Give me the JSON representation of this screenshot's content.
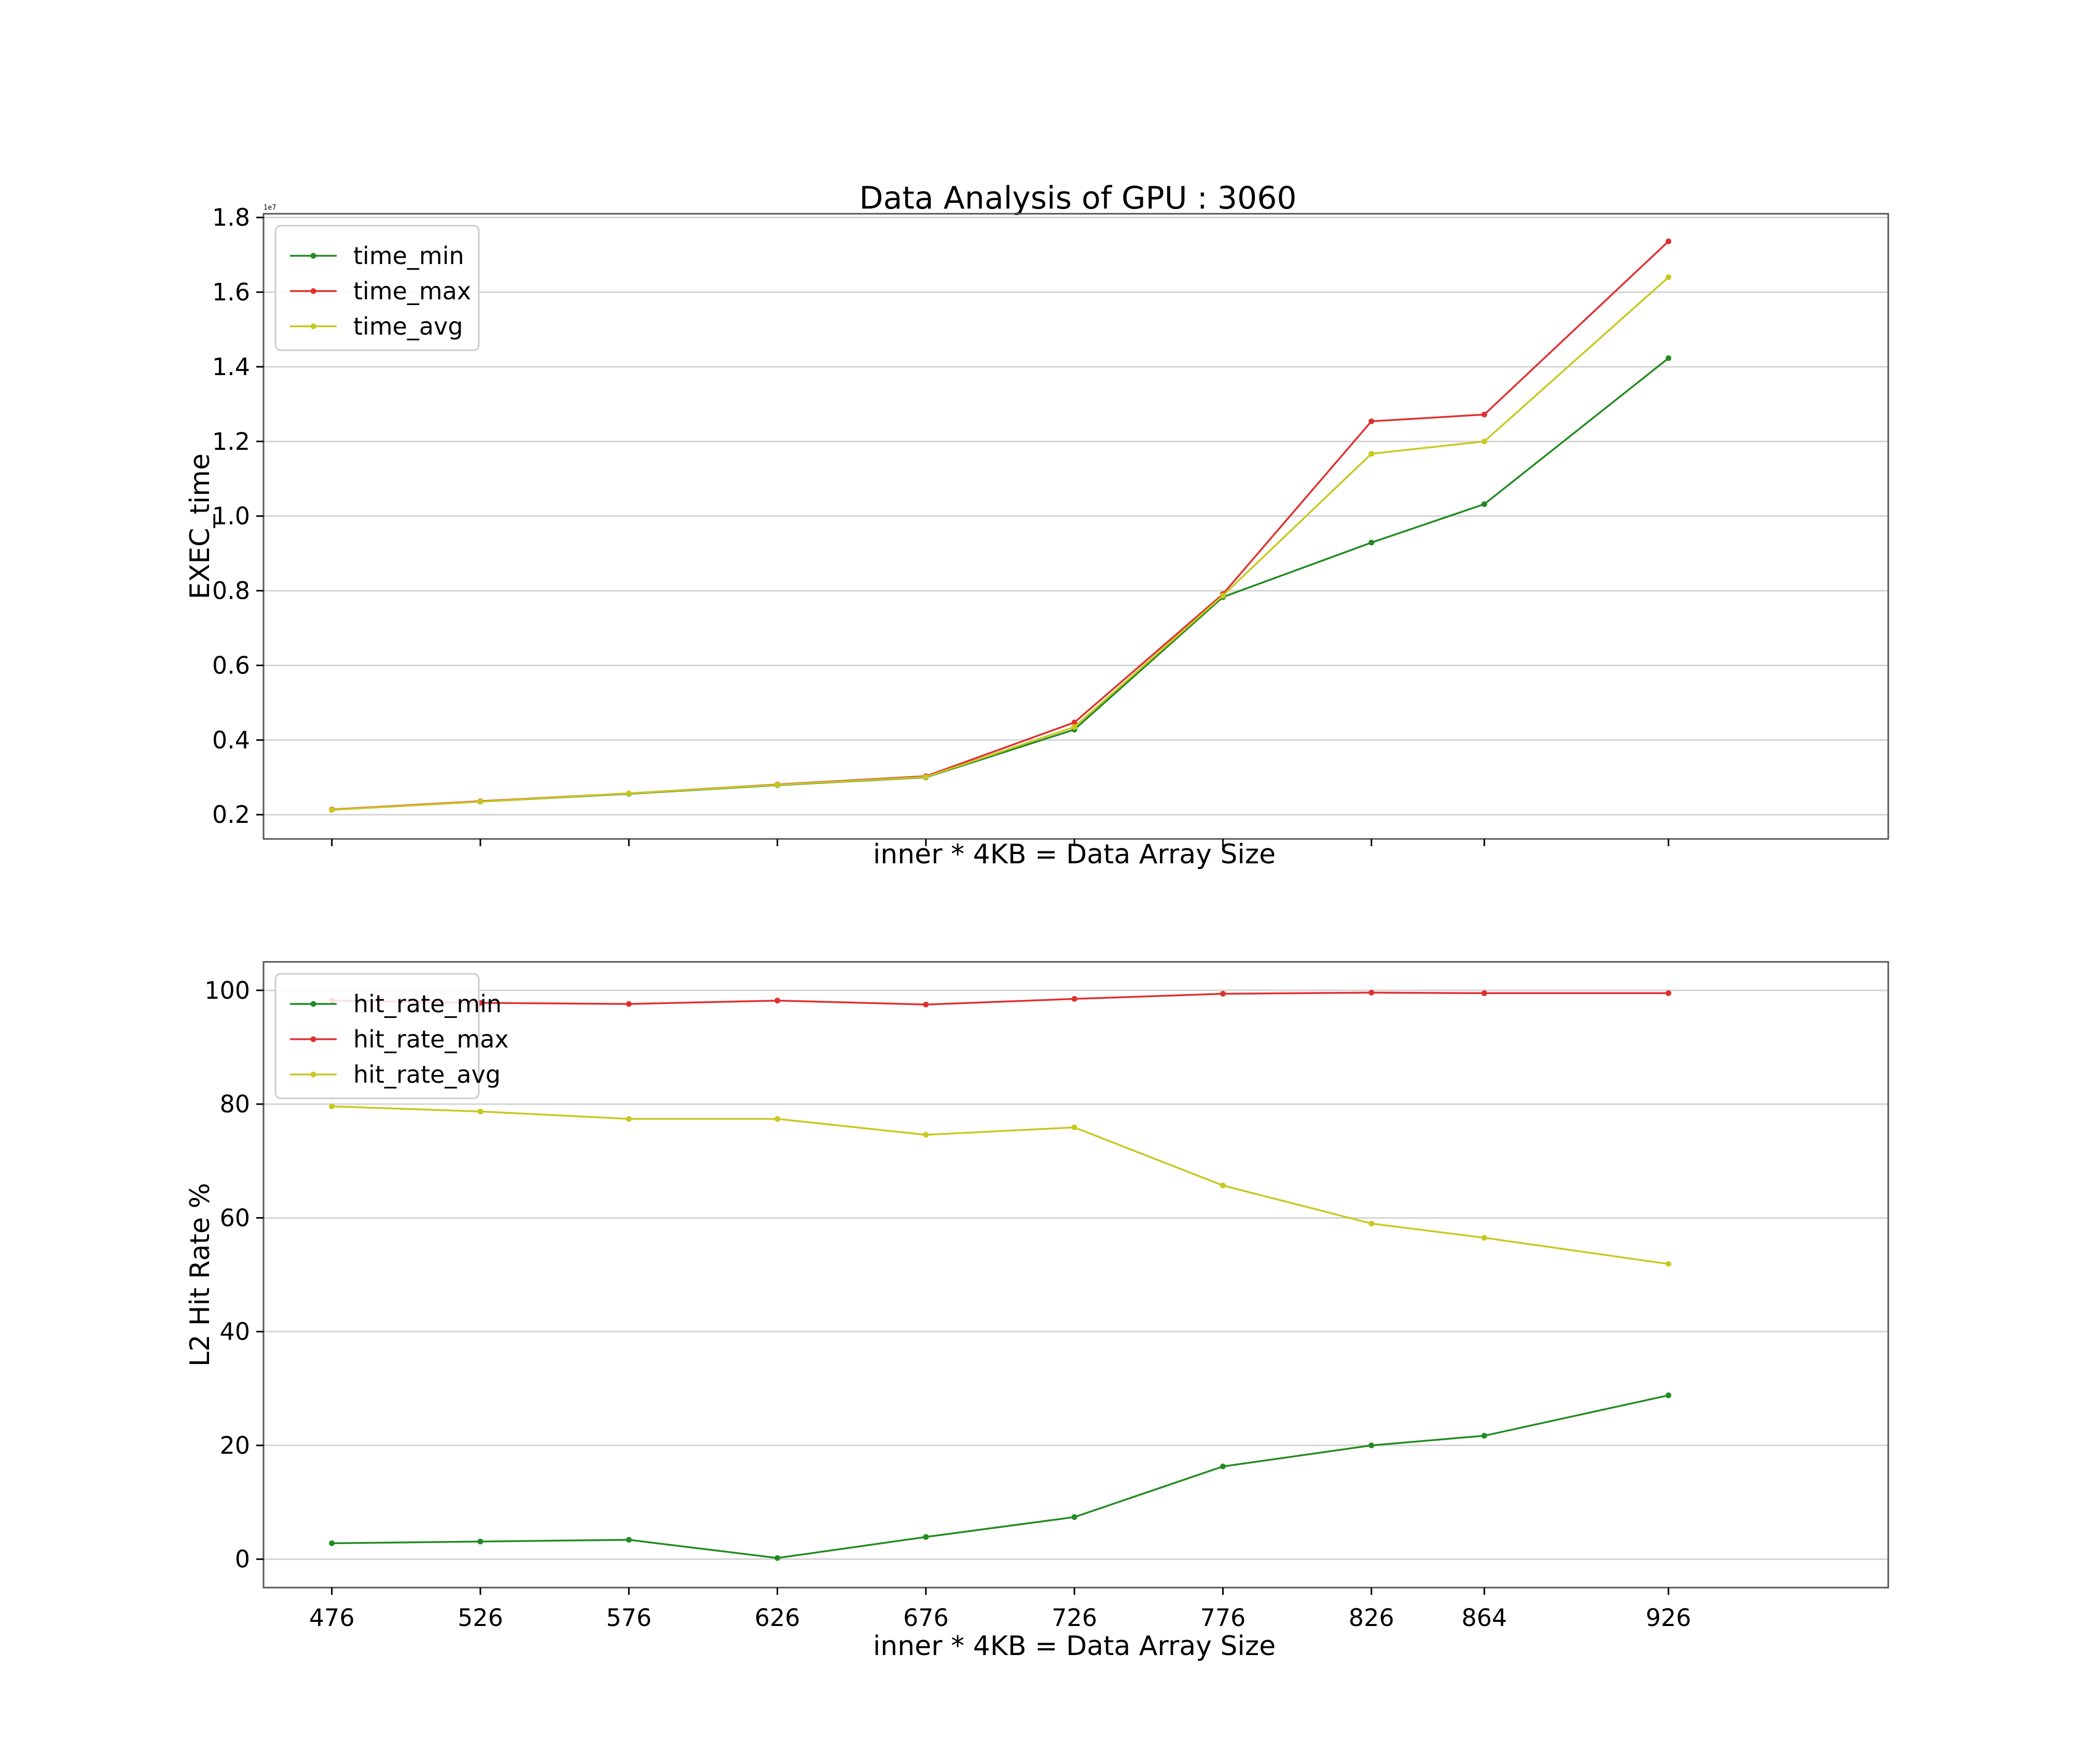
{
  "figure": {
    "title": "Data Analysis of GPU : 3060"
  },
  "chart_data": [
    {
      "type": "line",
      "title": "Data Analysis of GPU : 3060",
      "xlabel": "inner * 4KB = Data Array Size",
      "ylabel": "EXEC_time",
      "y_scale_label": "1e7",
      "x": [
        476,
        526,
        576,
        626,
        676,
        726,
        776,
        826,
        864,
        926
      ],
      "xlim": [
        453,
        1000
      ],
      "ylim": [
        0.135,
        1.81
      ],
      "y_ticks": [
        0.2,
        0.4,
        0.6,
        0.8,
        1.0,
        1.2,
        1.4,
        1.6,
        1.8
      ],
      "y_tick_labels": [
        "0.2",
        "0.4",
        "0.6",
        "0.8",
        "1.0",
        "1.2",
        "1.4",
        "1.6",
        "1.8"
      ],
      "x_tick_labels_visible": false,
      "grid": "horizontal",
      "legend": "top-left",
      "series": [
        {
          "name": "time_min",
          "color": "#228b22",
          "values": [
            0.213,
            0.235,
            0.256,
            0.279,
            0.3,
            0.428,
            0.783,
            0.929,
            1.032,
            1.423
          ]
        },
        {
          "name": "time_max",
          "color": "#e03030",
          "values": [
            0.214,
            0.236,
            0.257,
            0.281,
            0.303,
            0.447,
            0.791,
            1.254,
            1.272,
            1.736
          ]
        },
        {
          "name": "time_avg",
          "color": "#c8c820",
          "values": [
            0.213,
            0.235,
            0.257,
            0.28,
            0.301,
            0.435,
            0.787,
            1.167,
            1.2,
            1.64
          ]
        }
      ]
    },
    {
      "type": "line",
      "title": "",
      "xlabel": "inner * 4KB = Data Array Size",
      "ylabel": "L2 Hit Rate %",
      "x": [
        476,
        526,
        576,
        626,
        676,
        726,
        776,
        826,
        864,
        926
      ],
      "xlim": [
        453,
        1000
      ],
      "ylim": [
        -5,
        105
      ],
      "y_ticks": [
        0,
        20,
        40,
        60,
        80,
        100
      ],
      "y_tick_labels": [
        "0",
        "20",
        "40",
        "60",
        "80",
        "100"
      ],
      "x_tick_labels": [
        "476",
        "526",
        "576",
        "626",
        "676",
        "726",
        "776",
        "826",
        "864",
        "926"
      ],
      "grid": "horizontal",
      "legend": "top-left",
      "series": [
        {
          "name": "hit_rate_min",
          "color": "#228b22",
          "values": [
            2.8,
            3.1,
            3.4,
            0.2,
            3.9,
            7.4,
            16.3,
            20.0,
            21.7,
            28.8
          ]
        },
        {
          "name": "hit_rate_max",
          "color": "#e03030",
          "values": [
            98.2,
            97.8,
            97.6,
            98.2,
            97.5,
            98.5,
            99.4,
            99.6,
            99.5,
            99.5
          ]
        },
        {
          "name": "hit_rate_avg",
          "color": "#c8c820",
          "values": [
            79.6,
            78.7,
            77.4,
            77.4,
            74.6,
            75.9,
            65.7,
            59.0,
            56.5,
            51.9
          ]
        }
      ]
    }
  ]
}
